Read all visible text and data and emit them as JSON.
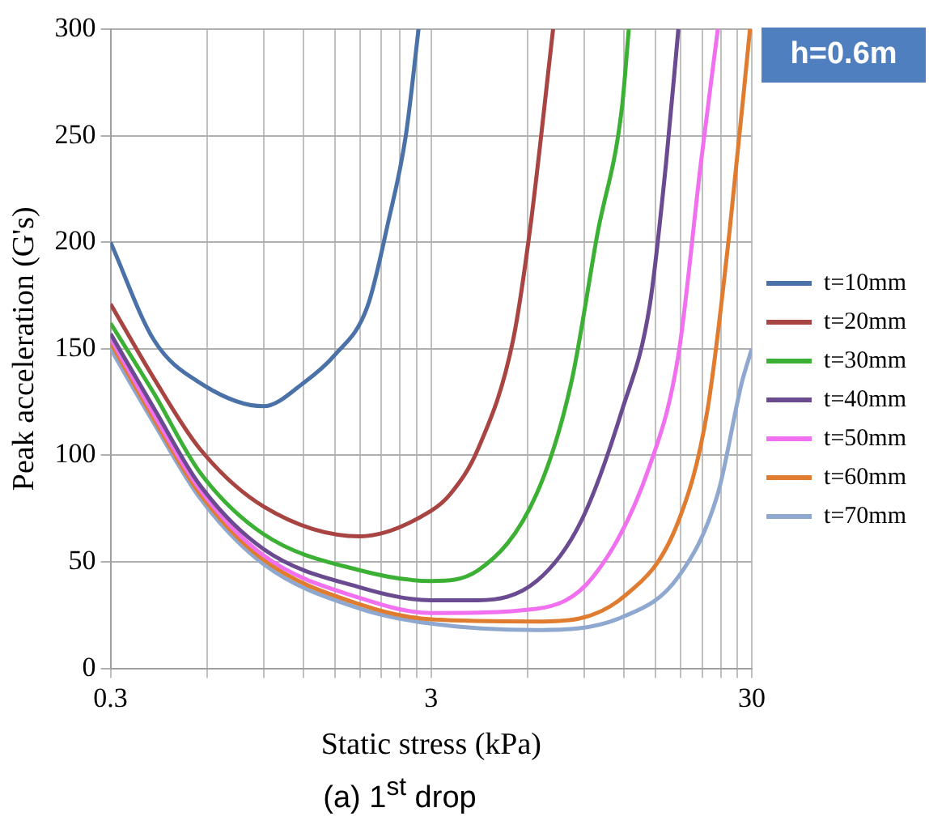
{
  "chart_data": {
    "type": "line",
    "xlabel": "Static stress (kPa)",
    "ylabel": "Peak acceleration (G's)",
    "log": "x",
    "xlim": [
      0.3,
      30
    ],
    "ylim": [
      0,
      300
    ],
    "xticks": [
      0.3,
      {
        "value": 0.6,
        "label": null
      },
      {
        "value": 0.9,
        "label": null
      },
      {
        "value": 1.2,
        "label": null
      },
      {
        "value": 1.5,
        "label": null
      },
      {
        "value": 1.8,
        "label": null
      },
      {
        "value": 2.1,
        "label": null
      },
      {
        "value": 2.4,
        "label": null
      },
      {
        "value": 2.7,
        "label": null
      },
      3,
      {
        "value": 6,
        "label": null
      },
      {
        "value": 9,
        "label": null
      },
      {
        "value": 12,
        "label": null
      },
      {
        "value": 15,
        "label": null
      },
      {
        "value": 18,
        "label": null
      },
      {
        "value": 21,
        "label": null
      },
      {
        "value": 24,
        "label": null
      },
      {
        "value": 27,
        "label": null
      },
      30
    ],
    "yticks": [
      0,
      50,
      100,
      150,
      200,
      250,
      300
    ],
    "grid": true,
    "legend": "right",
    "marker": "none",
    "line_style": "solid",
    "annotations": [
      "h=0.6m",
      "(a)  1$^{st}$ drop"
    ],
    "series": [
      {
        "name": "t=10mm",
        "color": "#4a72a8",
        "x": [
          0.3,
          0.41,
          0.57,
          0.9,
          1.2,
          1.5,
          1.9,
          2.2,
          2.5,
          2.74
        ],
        "values": [
          200,
          154,
          134,
          123,
          134,
          147,
          170,
          209,
          250,
          300
        ]
      },
      {
        "name": "t=20mm",
        "color": "#a84442",
        "x": [
          0.3,
          0.41,
          0.57,
          0.9,
          1.8,
          3,
          3.45,
          4.2,
          5.4,
          6.1,
          7.2
        ],
        "values": [
          171,
          136,
          103,
          76,
          62,
          74,
          82,
          103,
          154,
          206,
          300
        ]
      },
      {
        "name": "t=30mm",
        "color": "#3cb034",
        "x": [
          0.3,
          0.41,
          0.57,
          0.9,
          1.8,
          3,
          4.2,
          6.4,
          8.2,
          9.9,
          11.8,
          12.4
        ],
        "values": [
          162,
          129,
          92,
          63,
          46,
          41,
          46,
          82,
          134,
          204,
          263,
          300
        ]
      },
      {
        "name": "t=40mm",
        "color": "#6a4a90",
        "x": [
          0.3,
          0.41,
          0.57,
          0.9,
          1.8,
          3,
          4.2,
          6.4,
          8.8,
          11.8,
          14.4,
          16.2,
          17.7
        ],
        "values": [
          157,
          122,
          86,
          56,
          38,
          32,
          32,
          41,
          69,
          121,
          170,
          237,
          300
        ]
      },
      {
        "name": "t=50mm",
        "color": "#f070f0",
        "x": [
          0.3,
          0.41,
          0.57,
          0.9,
          1.8,
          3,
          6.4,
          9.6,
          14.4,
          17.7,
          20.8,
          23.5
        ],
        "values": [
          155,
          119,
          84,
          53,
          33,
          26,
          28,
          43,
          95,
          147,
          237,
          300
        ]
      },
      {
        "name": "t=60mm",
        "color": "#e07c30",
        "x": [
          0.3,
          0.41,
          0.57,
          0.9,
          1.8,
          3,
          6.4,
          11.8,
          17.7,
          21.8,
          25.6,
          29.6
        ],
        "values": [
          153,
          117,
          82,
          51,
          30,
          23,
          22,
          33,
          69,
          121,
          206,
          300
        ]
      },
      {
        "name": "t=70mm",
        "color": "#8ea8d0",
        "x": [
          0.3,
          0.41,
          0.57,
          0.9,
          1.8,
          3,
          6.4,
          11.8,
          17.7,
          23.5,
          27.9,
          30
        ],
        "values": [
          150,
          115,
          80,
          49,
          28,
          21,
          18,
          24,
          43,
          82,
          134,
          150
        ]
      }
    ]
  }
}
